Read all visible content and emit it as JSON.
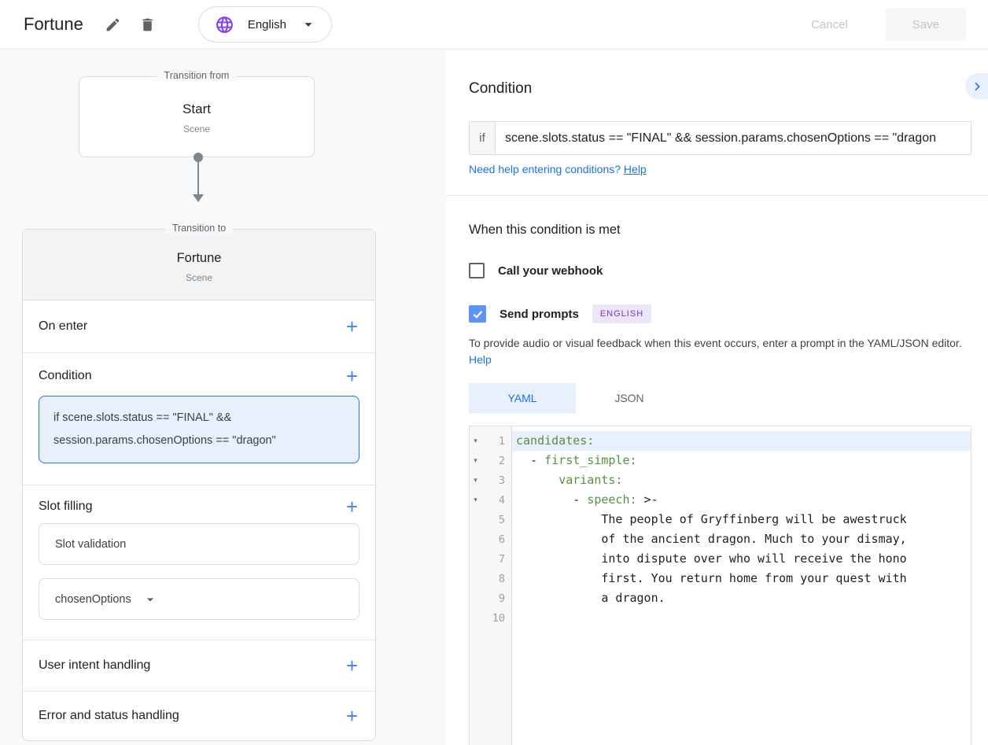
{
  "topbar": {
    "title": "Fortune",
    "language": "English",
    "cancel_label": "Cancel",
    "save_label": "Save"
  },
  "colors": {
    "accent_blue": "#1a73e8",
    "selected_bg": "#e8f0fe",
    "globe_purple": "#8441f4",
    "badge_purple": "#8430ce",
    "yaml_key_green": "#559140",
    "checkbox_blue": "#5e93f3"
  },
  "flow": {
    "from_legend": "Transition from",
    "from_title": "Start",
    "from_subtitle": "Scene",
    "to_legend": "Transition to",
    "to_title": "Fortune",
    "to_subtitle": "Scene",
    "sections": {
      "on_enter": "On enter",
      "condition": "Condition",
      "condition_value": "if scene.slots.status == \"FINAL\" &&\nsession.params.chosenOptions == \"dragon\"",
      "slot_filling": "Slot filling",
      "slot_validation": "Slot validation",
      "slot_param": "chosenOptions",
      "user_intent": "User intent handling",
      "error_status": "Error and status handling"
    },
    "plus_glyph": "+"
  },
  "panel": {
    "heading": "Condition",
    "if_label": "if",
    "if_value": "scene.slots.status == \"FINAL\" && session.params.chosenOptions == \"dragon",
    "help_prefix": "Need help entering conditions? ",
    "help_link": "Help",
    "met_heading": "When this condition is met",
    "webhook_label": "Call your webhook",
    "prompts_label": "Send prompts",
    "language_badge": "ENGLISH",
    "feedback_text": "To provide audio or visual feedback when this event occurs, enter a prompt in the YAML/JSON editor. ",
    "feedback_help": "Help",
    "tabs": [
      {
        "label": "YAML",
        "selected": true
      },
      {
        "label": "JSON",
        "selected": false
      }
    ]
  },
  "editor": {
    "lines": [
      {
        "n": 1,
        "fold": true,
        "active": true,
        "parts": [
          {
            "t": "key",
            "v": "candidates:"
          }
        ]
      },
      {
        "n": 2,
        "fold": true,
        "parts": [
          {
            "t": "p",
            "v": "  - "
          },
          {
            "t": "key",
            "v": "first_simple:"
          }
        ]
      },
      {
        "n": 3,
        "fold": true,
        "parts": [
          {
            "t": "p",
            "v": "      "
          },
          {
            "t": "key",
            "v": "variants:"
          }
        ]
      },
      {
        "n": 4,
        "fold": true,
        "parts": [
          {
            "t": "p",
            "v": "        - "
          },
          {
            "t": "key",
            "v": "speech:"
          },
          {
            "t": "p",
            "v": " >-"
          }
        ]
      },
      {
        "n": 5,
        "parts": [
          {
            "t": "p",
            "v": "            The people of Gryffinberg will be awestruck"
          }
        ]
      },
      {
        "n": 6,
        "parts": [
          {
            "t": "p",
            "v": "            of the ancient dragon. Much to your dismay,"
          }
        ]
      },
      {
        "n": 7,
        "parts": [
          {
            "t": "p",
            "v": "            into dispute over who will receive the hono"
          }
        ]
      },
      {
        "n": 8,
        "parts": [
          {
            "t": "p",
            "v": "            first. You return home from your quest with"
          }
        ]
      },
      {
        "n": 9,
        "parts": [
          {
            "t": "p",
            "v": "            a dragon."
          }
        ]
      },
      {
        "n": 10,
        "parts": []
      }
    ]
  }
}
